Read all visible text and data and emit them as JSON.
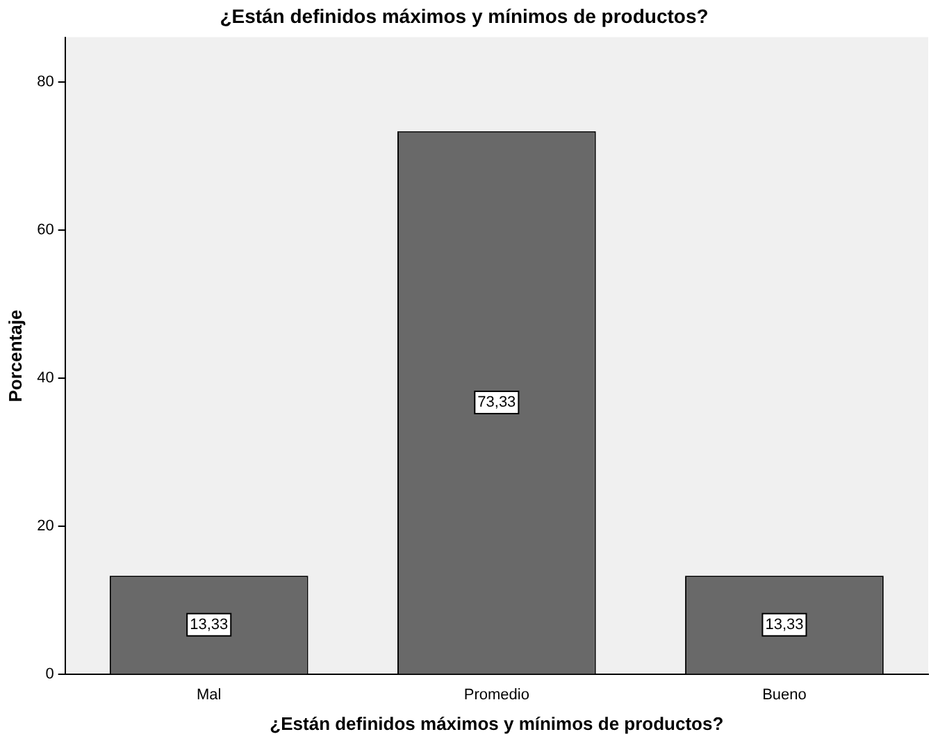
{
  "chart_data": {
    "type": "bar",
    "title": "¿Están definidos máximos y mínimos de productos?",
    "xlabel": "¿Están definidos máximos y mínimos de productos?",
    "ylabel": "Porcentaje",
    "categories": [
      "Mal",
      "Promedio",
      "Bueno"
    ],
    "values": [
      13.33,
      73.33,
      13.33
    ],
    "value_labels": [
      "13,33",
      "73,33",
      "13,33"
    ],
    "color": "#696969",
    "ylim": [
      0,
      86
    ],
    "yticks": [
      0,
      20,
      40,
      60,
      80
    ],
    "grid": false,
    "legend": false
  }
}
